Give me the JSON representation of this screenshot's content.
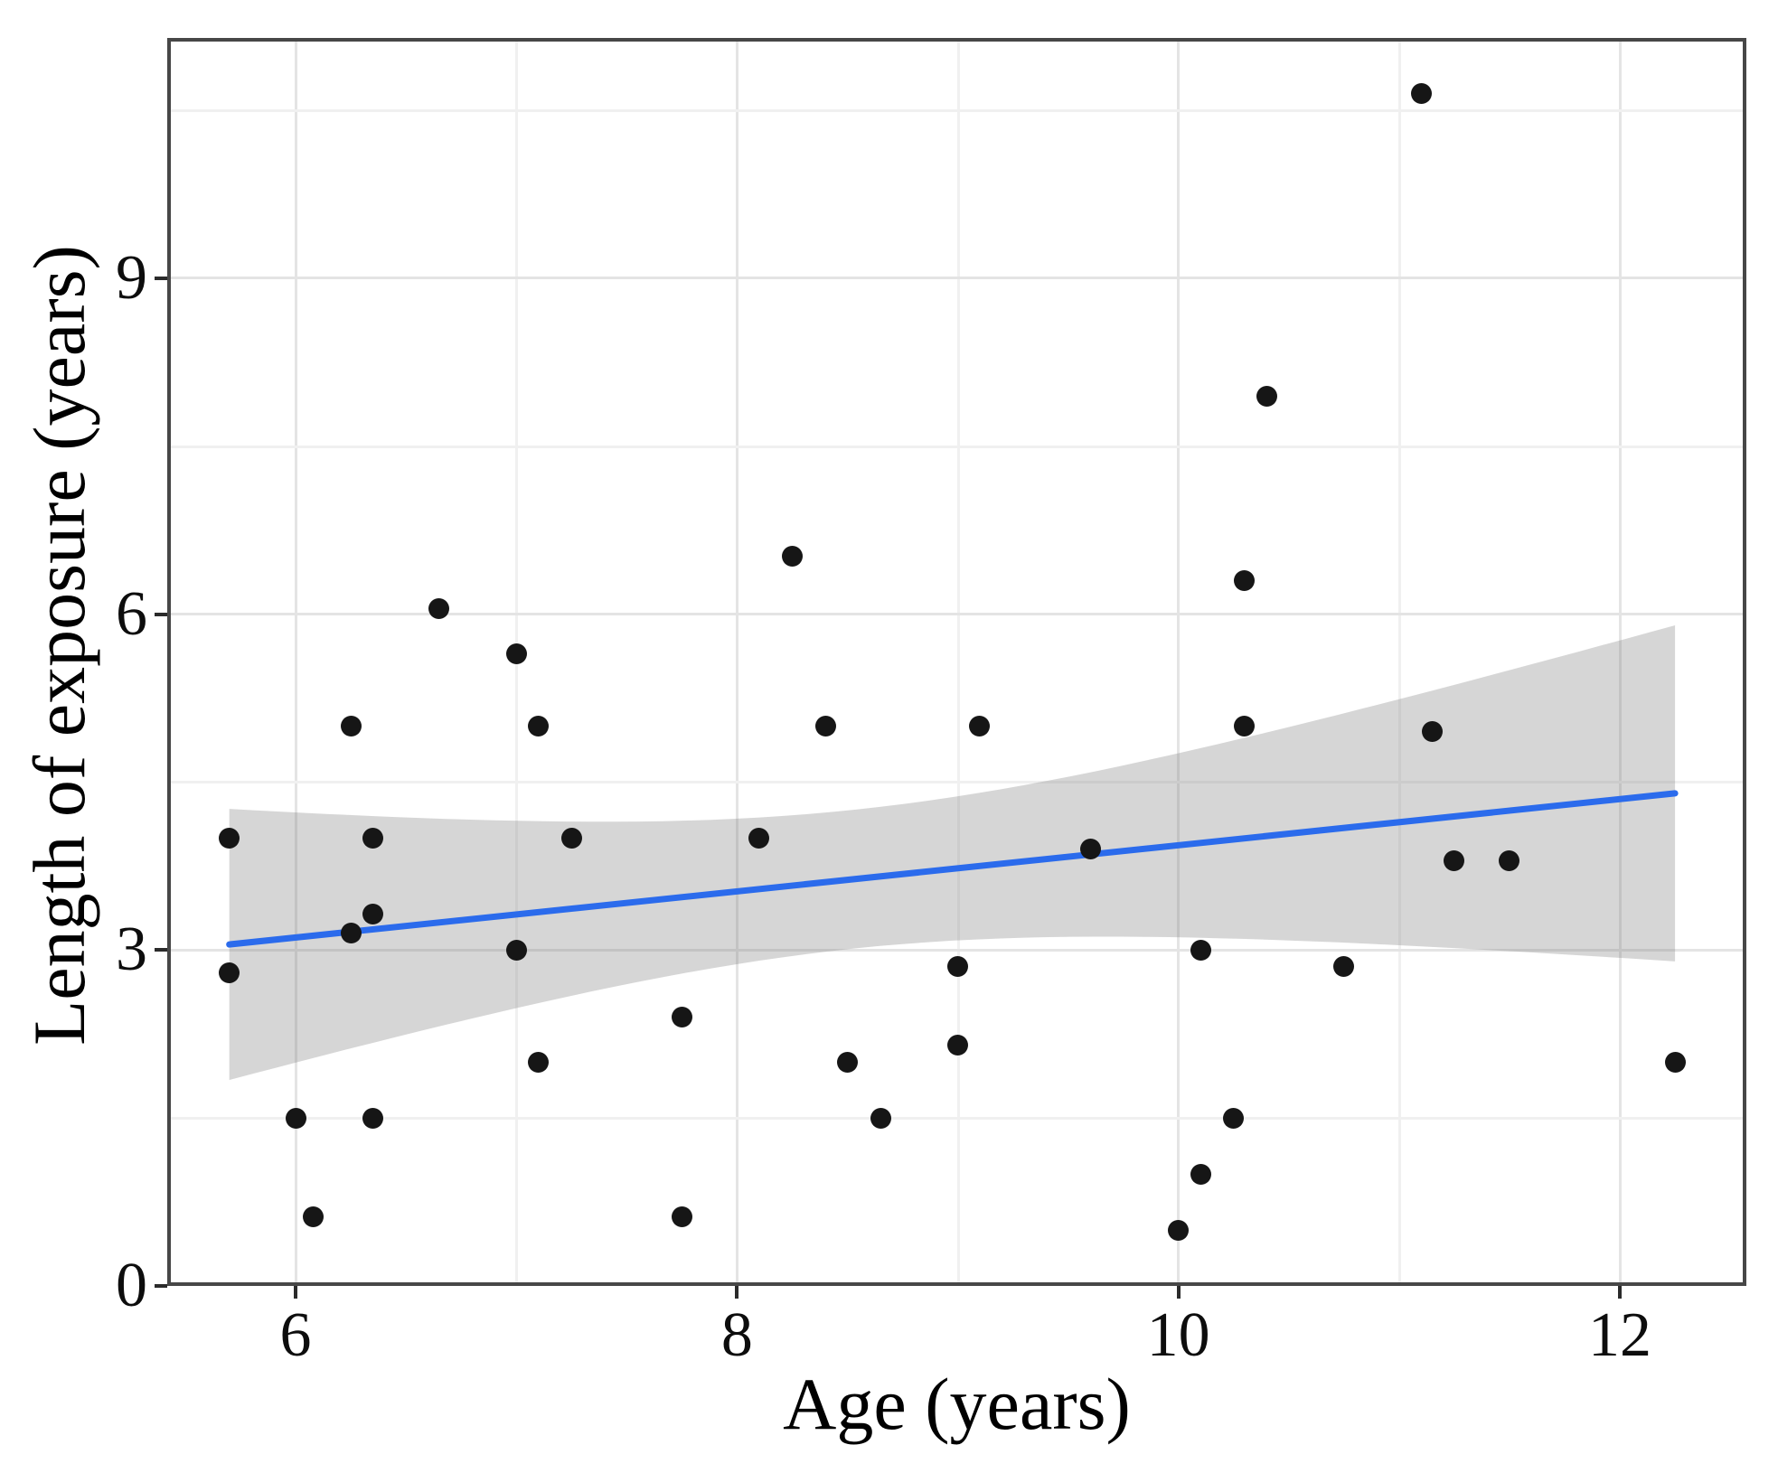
{
  "figure": {
    "background": "#ffffff"
  },
  "chart_data": {
    "type": "scatter",
    "title": "",
    "xlabel": "Age (years)",
    "ylabel": "Length of exposure (years)",
    "x_ticks": [
      6,
      8,
      10,
      12
    ],
    "y_ticks": [
      0,
      3,
      6,
      9
    ],
    "x_minor_gridlines": [
      7,
      9,
      11
    ],
    "y_minor_gridlines": [
      1.5,
      4.5,
      7.5,
      10.5
    ],
    "xlim": [
      5.42,
      12.57
    ],
    "ylim": [
      0,
      11.15
    ],
    "grid": true,
    "legend_position": "none",
    "points": [
      [
        5.7,
        4.0
      ],
      [
        5.7,
        2.8
      ],
      [
        6.0,
        1.5
      ],
      [
        6.08,
        0.62
      ],
      [
        6.25,
        5.0
      ],
      [
        6.25,
        3.15
      ],
      [
        6.35,
        4.0
      ],
      [
        6.35,
        3.32
      ],
      [
        6.35,
        1.5
      ],
      [
        6.65,
        6.05
      ],
      [
        7.0,
        5.65
      ],
      [
        7.0,
        3.0
      ],
      [
        7.1,
        5.0
      ],
      [
        7.1,
        2.0
      ],
      [
        7.25,
        4.0
      ],
      [
        7.75,
        2.4
      ],
      [
        7.75,
        0.62
      ],
      [
        8.1,
        4.0
      ],
      [
        8.25,
        6.52
      ],
      [
        8.4,
        5.0
      ],
      [
        8.5,
        2.0
      ],
      [
        8.65,
        1.5
      ],
      [
        9.0,
        2.85
      ],
      [
        9.0,
        2.15
      ],
      [
        9.1,
        5.0
      ],
      [
        9.6,
        3.9
      ],
      [
        10.0,
        0.5
      ],
      [
        10.1,
        3.0
      ],
      [
        10.1,
        1.0
      ],
      [
        10.25,
        1.5
      ],
      [
        10.3,
        6.3
      ],
      [
        10.3,
        5.0
      ],
      [
        10.4,
        7.95
      ],
      [
        10.75,
        2.85
      ],
      [
        11.1,
        10.65
      ],
      [
        11.15,
        4.95
      ],
      [
        11.25,
        3.8
      ],
      [
        11.5,
        3.8
      ],
      [
        12.25,
        2.0
      ]
    ],
    "regression_line": {
      "type": "linear",
      "x_start": 5.7,
      "x_end": 12.25,
      "intercept": 1.876,
      "slope": 0.206,
      "color": "#2b6bec",
      "width": 7
    },
    "confidence_band": {
      "x_start": 5.7,
      "x_end": 12.25,
      "half_width_model": {
        "a": 0.384,
        "b": 0.135,
        "x0": 8.53
      },
      "fill": "#808080",
      "opacity": 0.32
    },
    "point_color": "#161616",
    "colors": {
      "panel_border": "#474747",
      "grid_major": "#e4e4e4",
      "grid_minor": "#f0f0f0",
      "text": "#0d0d0d"
    }
  }
}
